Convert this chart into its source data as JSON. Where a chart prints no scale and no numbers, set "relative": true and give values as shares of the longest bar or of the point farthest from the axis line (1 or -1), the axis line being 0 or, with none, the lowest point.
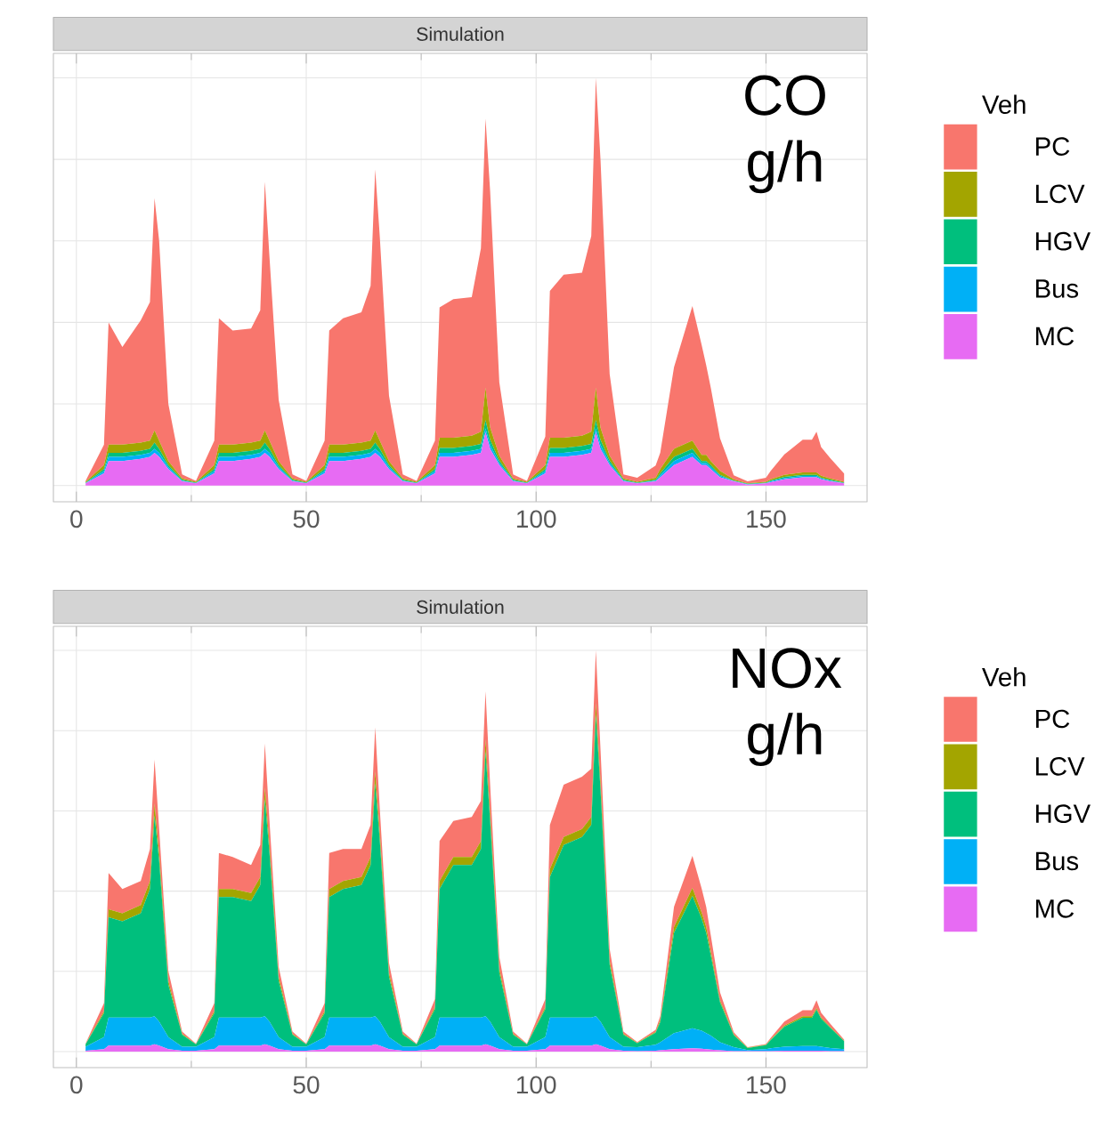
{
  "chart_data": [
    {
      "type": "area",
      "title": "Simulation",
      "stacked": true,
      "relative": true,
      "grid": true,
      "legend": "right",
      "legend_title": "Veh",
      "annotations": [
        "CO g/h"
      ],
      "xlim": [
        -5,
        172
      ],
      "xticks": [
        0,
        50,
        100,
        150
      ],
      "x": [
        2,
        6,
        7,
        10,
        14,
        16,
        17,
        18,
        20,
        23,
        26,
        30,
        31,
        34,
        38,
        40,
        41,
        42,
        44,
        47,
        50,
        54,
        55,
        58,
        62,
        64,
        65,
        66,
        68,
        71,
        74,
        78,
        79,
        82,
        86,
        88,
        89,
        90,
        92,
        95,
        98,
        102,
        103,
        106,
        110,
        112,
        113,
        114,
        116,
        119,
        122,
        126,
        127,
        130,
        134,
        136,
        137,
        138,
        140,
        143,
        146,
        150,
        151,
        154,
        158,
        160,
        161,
        162,
        164,
        167
      ],
      "series": [
        {
          "name": "MC",
          "color": "#e76bf3",
          "values": [
            0.005,
            0.03,
            0.06,
            0.06,
            0.065,
            0.07,
            0.08,
            0.07,
            0.04,
            0.01,
            0.005,
            0.03,
            0.06,
            0.06,
            0.065,
            0.07,
            0.08,
            0.07,
            0.04,
            0.01,
            0.005,
            0.03,
            0.06,
            0.06,
            0.065,
            0.07,
            0.08,
            0.07,
            0.04,
            0.01,
            0.005,
            0.03,
            0.07,
            0.07,
            0.075,
            0.08,
            0.13,
            0.09,
            0.05,
            0.01,
            0.005,
            0.03,
            0.07,
            0.07,
            0.075,
            0.08,
            0.13,
            0.09,
            0.05,
            0.01,
            0.005,
            0.01,
            0.02,
            0.05,
            0.07,
            0.05,
            0.05,
            0.04,
            0.02,
            0.01,
            0.002,
            0.005,
            0.008,
            0.015,
            0.02,
            0.02,
            0.02,
            0.015,
            0.01,
            0.005
          ]
        },
        {
          "name": "Bus",
          "color": "#00b0f6",
          "values": [
            0.001,
            0.005,
            0.01,
            0.01,
            0.01,
            0.01,
            0.01,
            0.01,
            0.005,
            0.002,
            0.001,
            0.005,
            0.01,
            0.01,
            0.01,
            0.01,
            0.01,
            0.01,
            0.005,
            0.002,
            0.001,
            0.005,
            0.01,
            0.01,
            0.01,
            0.01,
            0.01,
            0.01,
            0.005,
            0.002,
            0.001,
            0.005,
            0.01,
            0.01,
            0.01,
            0.01,
            0.01,
            0.01,
            0.005,
            0.002,
            0.001,
            0.005,
            0.01,
            0.01,
            0.01,
            0.01,
            0.01,
            0.01,
            0.005,
            0.002,
            0.001,
            0.002,
            0.005,
            0.01,
            0.01,
            0.005,
            0.005,
            0.005,
            0.003,
            0.001,
            0.001,
            0.001,
            0.002,
            0.003,
            0.003,
            0.003,
            0.003,
            0.002,
            0.002,
            0.001
          ]
        },
        {
          "name": "HGV",
          "color": "#00bf7d",
          "values": [
            0.001,
            0.005,
            0.01,
            0.01,
            0.01,
            0.01,
            0.015,
            0.01,
            0.005,
            0.002,
            0.001,
            0.005,
            0.01,
            0.01,
            0.01,
            0.01,
            0.015,
            0.01,
            0.005,
            0.002,
            0.001,
            0.005,
            0.01,
            0.01,
            0.01,
            0.01,
            0.015,
            0.01,
            0.005,
            0.002,
            0.001,
            0.005,
            0.012,
            0.012,
            0.012,
            0.012,
            0.02,
            0.012,
            0.006,
            0.002,
            0.001,
            0.005,
            0.012,
            0.012,
            0.012,
            0.012,
            0.02,
            0.012,
            0.006,
            0.002,
            0.001,
            0.002,
            0.005,
            0.01,
            0.01,
            0.005,
            0.005,
            0.005,
            0.003,
            0.001,
            0.001,
            0.001,
            0.002,
            0.003,
            0.003,
            0.003,
            0.003,
            0.002,
            0.002,
            0.001
          ]
        },
        {
          "name": "LCV",
          "color": "#a3a500",
          "values": [
            0.002,
            0.01,
            0.02,
            0.02,
            0.02,
            0.02,
            0.03,
            0.02,
            0.01,
            0.003,
            0.002,
            0.01,
            0.02,
            0.02,
            0.02,
            0.02,
            0.03,
            0.02,
            0.01,
            0.003,
            0.002,
            0.01,
            0.02,
            0.02,
            0.02,
            0.02,
            0.03,
            0.02,
            0.01,
            0.003,
            0.002,
            0.01,
            0.025,
            0.025,
            0.025,
            0.03,
            0.08,
            0.03,
            0.012,
            0.003,
            0.002,
            0.01,
            0.025,
            0.025,
            0.025,
            0.03,
            0.08,
            0.03,
            0.012,
            0.003,
            0.002,
            0.005,
            0.01,
            0.02,
            0.02,
            0.015,
            0.015,
            0.01,
            0.01,
            0.003,
            0.001,
            0.002,
            0.003,
            0.005,
            0.006,
            0.006,
            0.006,
            0.005,
            0.003,
            0.002
          ]
        },
        {
          "name": "PC",
          "color": "#f8766d",
          "values": [
            0.002,
            0.05,
            0.3,
            0.24,
            0.3,
            0.34,
            0.57,
            0.49,
            0.14,
            0.01,
            0.002,
            0.06,
            0.31,
            0.28,
            0.28,
            0.32,
            0.61,
            0.45,
            0.15,
            0.01,
            0.002,
            0.06,
            0.28,
            0.31,
            0.32,
            0.38,
            0.64,
            0.5,
            0.16,
            0.01,
            0.002,
            0.06,
            0.32,
            0.34,
            0.34,
            0.45,
            0.66,
            0.58,
            0.18,
            0.01,
            0.002,
            0.07,
            0.36,
            0.4,
            0.4,
            0.48,
            0.76,
            0.66,
            0.2,
            0.01,
            0.01,
            0.03,
            0.04,
            0.2,
            0.33,
            0.27,
            0.22,
            0.18,
            0.08,
            0.01,
            0.005,
            0.01,
            0.02,
            0.05,
            0.08,
            0.08,
            0.1,
            0.07,
            0.05,
            0.02
          ]
        }
      ]
    },
    {
      "type": "area",
      "title": "Simulation",
      "stacked": true,
      "relative": true,
      "grid": true,
      "legend": "right",
      "legend_title": "Veh",
      "annotations": [
        "NOx g/h"
      ],
      "xlim": [
        -5,
        172
      ],
      "xticks": [
        0,
        50,
        100,
        150
      ],
      "x": [
        2,
        6,
        7,
        10,
        14,
        16,
        17,
        18,
        20,
        23,
        26,
        30,
        31,
        34,
        38,
        40,
        41,
        42,
        44,
        47,
        50,
        54,
        55,
        58,
        62,
        64,
        65,
        66,
        68,
        71,
        74,
        78,
        79,
        82,
        86,
        88,
        89,
        90,
        92,
        95,
        98,
        102,
        103,
        106,
        110,
        112,
        113,
        114,
        116,
        119,
        122,
        126,
        127,
        130,
        134,
        136,
        137,
        138,
        140,
        143,
        146,
        150,
        151,
        154,
        158,
        160,
        161,
        162,
        164,
        167
      ],
      "series": [
        {
          "name": "MC",
          "color": "#e76bf3",
          "values": [
            0.002,
            0.006,
            0.015,
            0.015,
            0.015,
            0.015,
            0.018,
            0.015,
            0.006,
            0.002,
            0.002,
            0.006,
            0.015,
            0.015,
            0.015,
            0.015,
            0.018,
            0.015,
            0.006,
            0.002,
            0.002,
            0.006,
            0.015,
            0.015,
            0.015,
            0.015,
            0.018,
            0.015,
            0.006,
            0.002,
            0.002,
            0.006,
            0.015,
            0.015,
            0.015,
            0.015,
            0.018,
            0.015,
            0.006,
            0.002,
            0.002,
            0.006,
            0.015,
            0.015,
            0.015,
            0.015,
            0.018,
            0.015,
            0.006,
            0.002,
            0.001,
            0.002,
            0.003,
            0.006,
            0.008,
            0.007,
            0.006,
            0.005,
            0.003,
            0.001,
            0.001,
            0.001,
            0.001,
            0.002,
            0.002,
            0.002,
            0.002,
            0.002,
            0.001,
            0.001
          ]
        },
        {
          "name": "Bus",
          "color": "#00b0f6",
          "values": [
            0.01,
            0.03,
            0.07,
            0.07,
            0.07,
            0.07,
            0.07,
            0.06,
            0.03,
            0.01,
            0.01,
            0.03,
            0.07,
            0.07,
            0.07,
            0.07,
            0.07,
            0.06,
            0.03,
            0.01,
            0.01,
            0.03,
            0.07,
            0.07,
            0.07,
            0.07,
            0.07,
            0.06,
            0.03,
            0.01,
            0.01,
            0.03,
            0.07,
            0.07,
            0.07,
            0.07,
            0.07,
            0.06,
            0.03,
            0.01,
            0.01,
            0.03,
            0.07,
            0.07,
            0.07,
            0.07,
            0.07,
            0.06,
            0.03,
            0.01,
            0.01,
            0.015,
            0.02,
            0.04,
            0.05,
            0.045,
            0.04,
            0.035,
            0.02,
            0.01,
            0.003,
            0.005,
            0.007,
            0.01,
            0.012,
            0.012,
            0.012,
            0.01,
            0.008,
            0.005
          ]
        },
        {
          "name": "HGV",
          "color": "#00bf7d",
          "values": [
            0.006,
            0.06,
            0.25,
            0.24,
            0.26,
            0.32,
            0.5,
            0.4,
            0.13,
            0.03,
            0.006,
            0.06,
            0.3,
            0.3,
            0.29,
            0.33,
            0.54,
            0.42,
            0.14,
            0.03,
            0.006,
            0.06,
            0.3,
            0.32,
            0.33,
            0.38,
            0.58,
            0.45,
            0.15,
            0.03,
            0.006,
            0.07,
            0.32,
            0.38,
            0.38,
            0.42,
            0.66,
            0.5,
            0.16,
            0.03,
            0.006,
            0.07,
            0.35,
            0.43,
            0.45,
            0.48,
            0.75,
            0.58,
            0.18,
            0.03,
            0.01,
            0.03,
            0.05,
            0.25,
            0.33,
            0.28,
            0.25,
            0.2,
            0.1,
            0.03,
            0.005,
            0.01,
            0.02,
            0.05,
            0.07,
            0.07,
            0.09,
            0.07,
            0.05,
            0.02
          ]
        },
        {
          "name": "LCV",
          "color": "#a3a500",
          "values": [
            0.001,
            0.005,
            0.02,
            0.02,
            0.02,
            0.02,
            0.03,
            0.02,
            0.01,
            0.002,
            0.001,
            0.005,
            0.02,
            0.02,
            0.02,
            0.02,
            0.03,
            0.02,
            0.01,
            0.002,
            0.001,
            0.005,
            0.02,
            0.02,
            0.02,
            0.02,
            0.03,
            0.02,
            0.01,
            0.002,
            0.001,
            0.005,
            0.02,
            0.02,
            0.02,
            0.02,
            0.03,
            0.02,
            0.01,
            0.002,
            0.001,
            0.005,
            0.02,
            0.02,
            0.02,
            0.02,
            0.03,
            0.02,
            0.01,
            0.002,
            0.001,
            0.002,
            0.005,
            0.015,
            0.02,
            0.015,
            0.015,
            0.01,
            0.005,
            0.002,
            0.001,
            0.001,
            0.002,
            0.003,
            0.004,
            0.004,
            0.004,
            0.003,
            0.002,
            0.001
          ]
        },
        {
          "name": "PC",
          "color": "#f8766d",
          "values": [
            0.001,
            0.02,
            0.09,
            0.06,
            0.06,
            0.08,
            0.11,
            0.06,
            0.025,
            0.006,
            0.001,
            0.02,
            0.09,
            0.08,
            0.07,
            0.08,
            0.11,
            0.06,
            0.025,
            0.006,
            0.001,
            0.02,
            0.09,
            0.08,
            0.07,
            0.08,
            0.11,
            0.06,
            0.025,
            0.006,
            0.001,
            0.02,
            0.1,
            0.09,
            0.1,
            0.1,
            0.12,
            0.07,
            0.03,
            0.006,
            0.001,
            0.02,
            0.11,
            0.13,
            0.13,
            0.12,
            0.132,
            0.08,
            0.03,
            0.006,
            0.002,
            0.005,
            0.01,
            0.05,
            0.08,
            0.06,
            0.05,
            0.04,
            0.02,
            0.005,
            0.001,
            0.002,
            0.004,
            0.01,
            0.015,
            0.015,
            0.02,
            0.012,
            0.008,
            0.003
          ]
        }
      ]
    }
  ]
}
